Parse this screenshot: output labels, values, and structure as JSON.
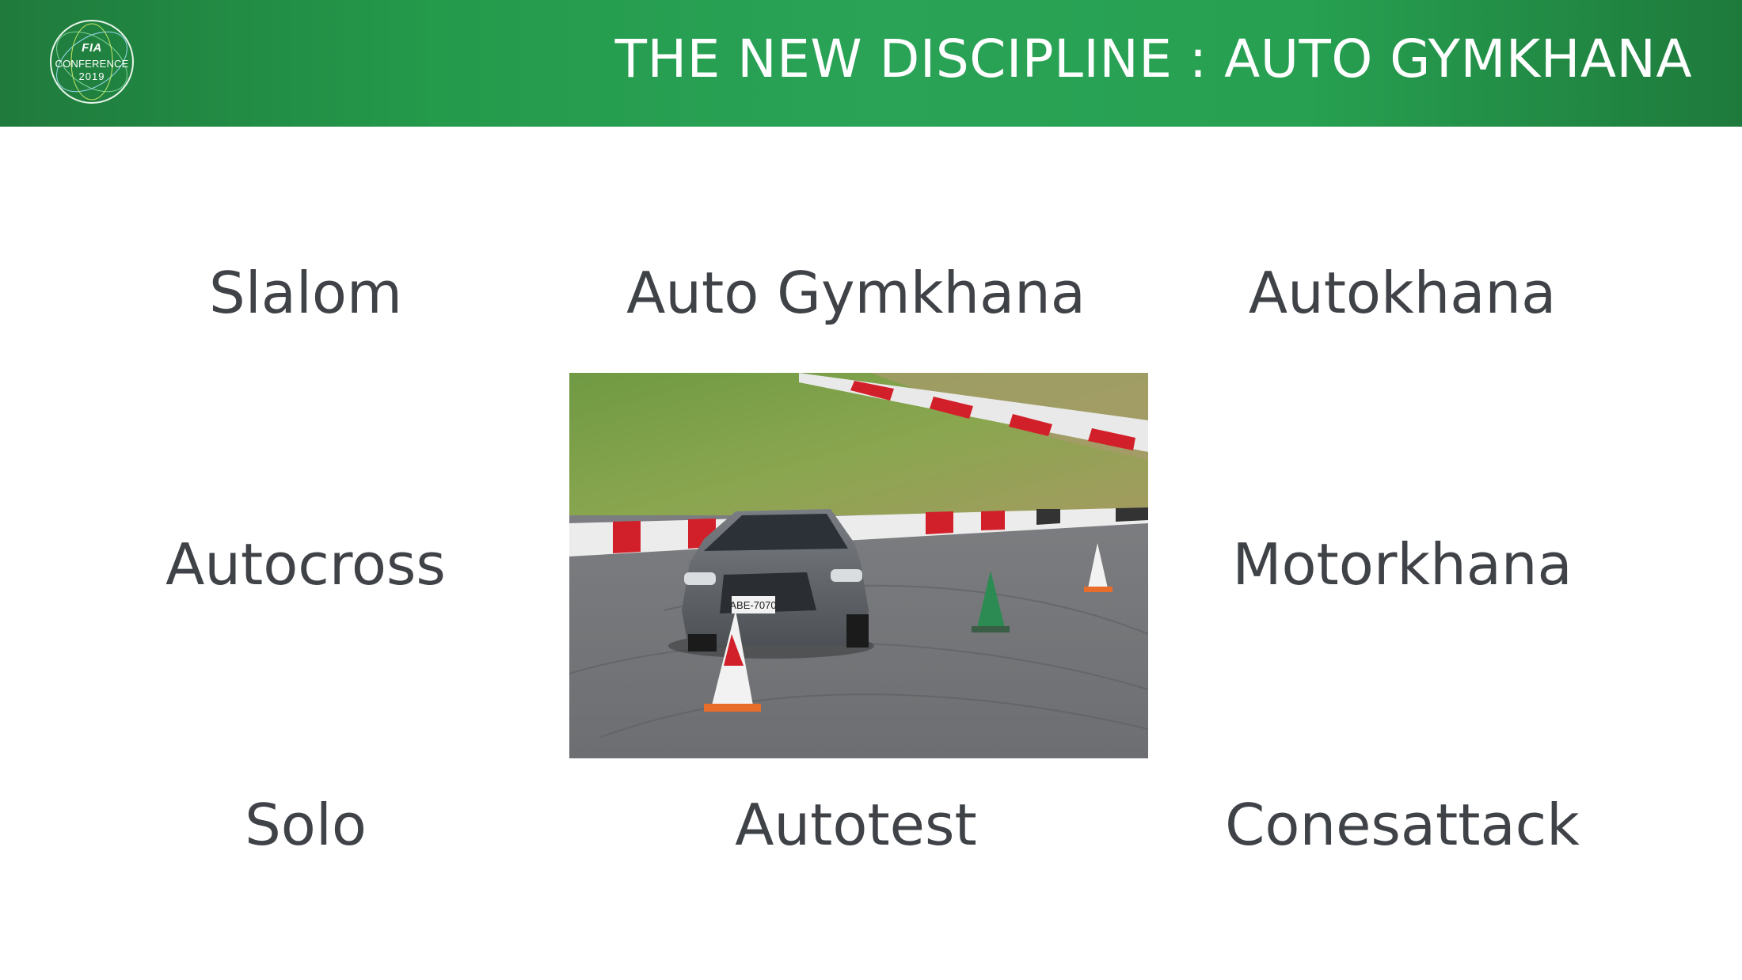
{
  "header": {
    "title": "THE NEW DISCIPLINE : AUTO GYMKHANA",
    "logo": {
      "brand": "FIA",
      "event": "CONFERENCE",
      "year": "2019"
    }
  },
  "terms": {
    "row1": [
      "Slalom",
      "Auto Gymkhana",
      "Autokhana"
    ],
    "row2": [
      "Autocross",
      "Motorkhana"
    ],
    "row3": [
      "Solo",
      "Autotest",
      "Conesattack"
    ]
  },
  "photo": {
    "license_plate": "ABE-7070",
    "subject": "car-on-gymkhana-course"
  },
  "colors": {
    "banner": "#27a051",
    "text": "#3f4246",
    "curb_red": "#d2202a"
  }
}
